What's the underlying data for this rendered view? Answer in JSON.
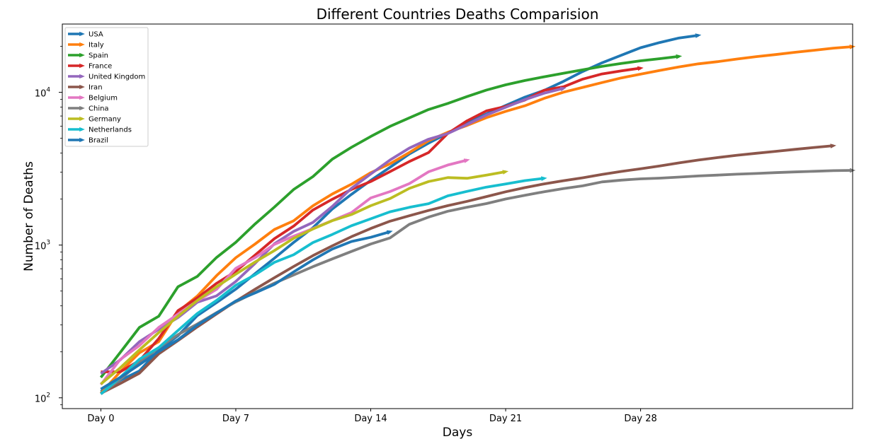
{
  "chart_data": {
    "type": "line",
    "title": "Different Countries Deaths Comparision",
    "xlabel": "Days",
    "ylabel": "Number of Deaths",
    "yscale": "log",
    "ylim": [
      85,
      28000
    ],
    "xlim": [
      -2,
      39
    ],
    "xticks": [
      0,
      7,
      14,
      21,
      28
    ],
    "xtick_labels": [
      "Day 0",
      "Day 7",
      "Day 14",
      "Day 21",
      "Day 28"
    ],
    "yticks": [
      {
        "value": 100,
        "base": "10",
        "exp": "2"
      },
      {
        "value": 1000,
        "base": "10",
        "exp": "3"
      },
      {
        "value": 10000,
        "base": "10",
        "exp": "4"
      }
    ],
    "legend_position": "upper-left",
    "series": [
      {
        "name": "USA",
        "color": "#1f77b4",
        "values": [
          110,
          130,
          150,
          205,
          255,
          345,
          420,
          515,
          650,
          820,
          1040,
          1300,
          1720,
          2150,
          2650,
          3230,
          3950,
          4650,
          5400,
          6300,
          7200,
          8200,
          9300,
          10300,
          11800,
          13700,
          15600,
          17500,
          19600,
          21200,
          22700,
          23600
        ]
      },
      {
        "name": "Italy",
        "color": "#ff7f0e",
        "values": [
          107,
          148,
          197,
          233,
          366,
          463,
          631,
          827,
          1016,
          1266,
          1441,
          1809,
          2158,
          2503,
          2978,
          3405,
          4032,
          4825,
          5476,
          6077,
          6820,
          7503,
          8165,
          9134,
          10023,
          10779,
          11591,
          12428,
          13155,
          13915,
          14681,
          15362,
          15887,
          16523,
          17127,
          17669,
          18279,
          18849,
          19468,
          19899
        ]
      },
      {
        "name": "Spain",
        "color": "#2ca02c",
        "values": [
          136,
          198,
          289,
          342,
          533,
          623,
          830,
          1043,
          1375,
          1772,
          2311,
          2808,
          3647,
          4365,
          5138,
          5982,
          6803,
          7716,
          8464,
          9387,
          10348,
          11198,
          11947,
          12641,
          13341,
          14045,
          14792,
          15447,
          16081,
          16606,
          17209
        ]
      },
      {
        "name": "France",
        "color": "#d62728",
        "values": [
          148,
          148,
          175,
          244,
          372,
          450,
          562,
          674,
          860,
          1100,
          1331,
          1696,
          1995,
          2314,
          2606,
          3024,
          3523,
          4032,
          5387,
          6507,
          7560,
          8078,
          8911,
          10328,
          10869,
          12210,
          13197,
          13832,
          14393
        ]
      },
      {
        "name": "United Kingdom",
        "color": "#9467bd",
        "values": [
          144,
          177,
          233,
          281,
          335,
          422,
          465,
          578,
          759,
          1019,
          1228,
          1408,
          1789,
          2352,
          2921,
          3605,
          4313,
          4934,
          5373,
          6159,
          7097,
          7978,
          8958,
          9875,
          10612
        ]
      },
      {
        "name": "Iran",
        "color": "#8c564b",
        "values": [
          107,
          124,
          145,
          194,
          237,
          291,
          354,
          429,
          514,
          611,
          724,
          853,
          988,
          1135,
          1284,
          1433,
          1556,
          1685,
          1812,
          1934,
          2077,
          2234,
          2378,
          2517,
          2640,
          2757,
          2898,
          3036,
          3160,
          3294,
          3452,
          3603,
          3739,
          3872,
          3993,
          4110,
          4232,
          4357,
          4474
        ]
      },
      {
        "name": "Belgium",
        "color": "#e377c2",
        "values": [
          122,
          178,
          220,
          289,
          353,
          431,
          513,
          705,
          828,
          1011,
          1143,
          1283,
          1447,
          1632,
          2035,
          2240,
          2523,
          3019,
          3346,
          3600
        ]
      },
      {
        "name": "China",
        "color": "#7f7f7f",
        "values": [
          106,
          132,
          170,
          213,
          259,
          304,
          361,
          425,
          490,
          563,
          637,
          722,
          811,
          908,
          1016,
          1113,
          1368,
          1525,
          1666,
          1770,
          1868,
          2004,
          2118,
          2236,
          2345,
          2442,
          2592,
          2663,
          2715,
          2744,
          2788,
          2835,
          2870,
          2912,
          2943,
          2981,
          3012,
          3042,
          3070,
          3085
        ]
      },
      {
        "name": "Germany",
        "color": "#bcbd22",
        "values": [
          123,
          157,
          206,
          267,
          342,
          433,
          533,
          645,
          775,
          920,
          1107,
          1275,
          1444,
          1584,
          1810,
          2016,
          2349,
          2607,
          2767,
          2736,
          2871,
          3022
        ]
      },
      {
        "name": "Netherlands",
        "color": "#17becf",
        "values": [
          106,
          136,
          179,
          213,
          276,
          356,
          434,
          546,
          639,
          771,
          864,
          1039,
          1173,
          1339,
          1487,
          1651,
          1766,
          1867,
          2101,
          2248,
          2396,
          2511,
          2643,
          2737
        ]
      },
      {
        "name": "Brazil",
        "color": "#1f77b4",
        "values": [
          114,
          136,
          165,
          201,
          240,
          299,
          359,
          431,
          486,
          553,
          667,
          800,
          941,
          1056,
          1124,
          1223
        ]
      }
    ]
  }
}
